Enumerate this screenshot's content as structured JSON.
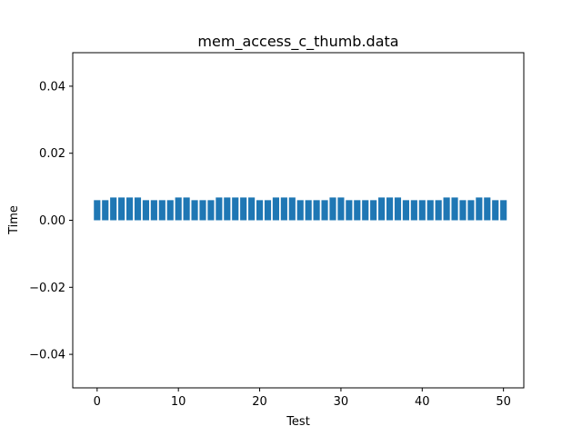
{
  "chart_data": {
    "type": "bar",
    "title": "mem_access_c_thumb.data",
    "xlabel": "Test",
    "ylabel": "Time",
    "xlim": [
      -3,
      52.5
    ],
    "ylim": [
      -0.05,
      0.05
    ],
    "x_ticks": [
      0,
      10,
      20,
      30,
      40,
      50
    ],
    "x_tick_labels": [
      "0",
      "10",
      "20",
      "30",
      "40",
      "50"
    ],
    "y_ticks": [
      -0.04,
      -0.02,
      0.0,
      0.02,
      0.04
    ],
    "y_tick_labels": [
      "−0.04",
      "−0.02",
      "0.00",
      "0.02",
      "0.04"
    ],
    "grid": false,
    "bar_color": "#1f77b4",
    "series": [
      {
        "x": [
          0,
          1,
          2,
          3,
          4,
          5,
          6,
          7,
          8,
          9,
          10,
          11,
          12,
          13,
          14,
          15,
          16,
          17,
          18,
          19,
          20,
          21,
          22,
          23,
          24,
          25,
          26,
          27,
          28,
          29,
          30,
          31,
          32,
          33,
          34,
          35,
          36,
          37,
          38,
          39,
          40,
          41,
          42,
          43,
          44,
          45,
          46,
          47,
          48,
          49,
          50
        ],
        "values": [
          0.006,
          0.006,
          0.0068,
          0.0068,
          0.0068,
          0.0068,
          0.006,
          0.006,
          0.006,
          0.006,
          0.0068,
          0.0068,
          0.006,
          0.006,
          0.006,
          0.0068,
          0.0068,
          0.0068,
          0.0068,
          0.0068,
          0.006,
          0.006,
          0.0068,
          0.0068,
          0.0068,
          0.006,
          0.006,
          0.006,
          0.006,
          0.0068,
          0.0068,
          0.006,
          0.006,
          0.006,
          0.006,
          0.0068,
          0.0068,
          0.0068,
          0.006,
          0.006,
          0.006,
          0.006,
          0.006,
          0.0068,
          0.0068,
          0.006,
          0.006,
          0.0068,
          0.0068,
          0.006,
          0.006
        ]
      }
    ]
  }
}
